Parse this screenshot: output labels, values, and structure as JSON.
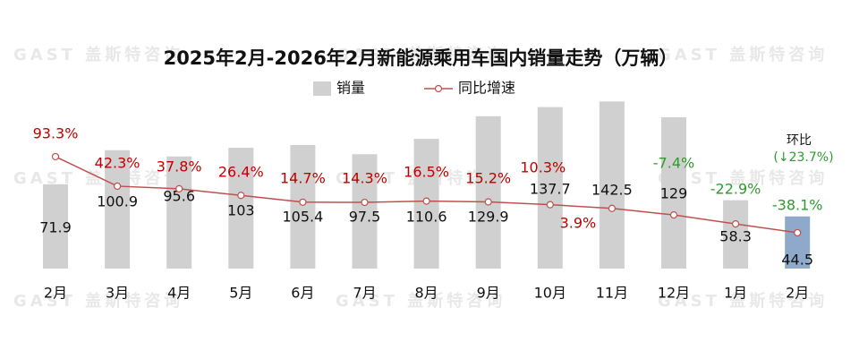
{
  "chart_data": {
    "type": "bar-line",
    "title": "2025年2月-2026年2月新能源乘用车国内销量走势（万辆）",
    "watermark": "GAST 盖斯特咨询",
    "categories": [
      "2月",
      "3月",
      "4月",
      "5月",
      "6月",
      "7月",
      "8月",
      "9月",
      "10月",
      "11月",
      "12月",
      "1月",
      "2月"
    ],
    "ylim": [
      0,
      160
    ],
    "y2lim": [
      -100,
      224
    ],
    "series": [
      {
        "name": "销量",
        "type": "bar",
        "color": "#d0d0d0",
        "colors": [
          "#d0d0d0",
          "#d0d0d0",
          "#d0d0d0",
          "#d0d0d0",
          "#d0d0d0",
          "#d0d0d0",
          "#d0d0d0",
          "#d0d0d0",
          "#d0d0d0",
          "#d0d0d0",
          "#d0d0d0",
          "#d0d0d0",
          "#8ea9c9"
        ],
        "values": [
          71.9,
          100.9,
          95.6,
          103,
          105.4,
          97.5,
          110.6,
          129.9,
          137.7,
          142.5,
          129,
          58.3,
          44.5
        ]
      },
      {
        "name": "同比增速",
        "type": "line",
        "axis": "y2",
        "color": "#c0504d",
        "values": [
          93.3,
          42.3,
          37.8,
          26.4,
          14.7,
          14.3,
          16.5,
          15.2,
          10.3,
          3.9,
          -7.4,
          -22.9,
          -38.1
        ],
        "value_labels": [
          "93.3%",
          "42.3%",
          "37.8%",
          "26.4%",
          "14.7%",
          "14.3%",
          "16.5%",
          "15.2%",
          "10.3%",
          "3.9%",
          "-7.4%",
          "-22.9%",
          "-38.1%"
        ],
        "label_colors": {
          "positive": "#c00000",
          "negative": "#2e9b2e"
        }
      }
    ],
    "annotations": [
      "环比",
      "(↓23.7%)"
    ]
  }
}
